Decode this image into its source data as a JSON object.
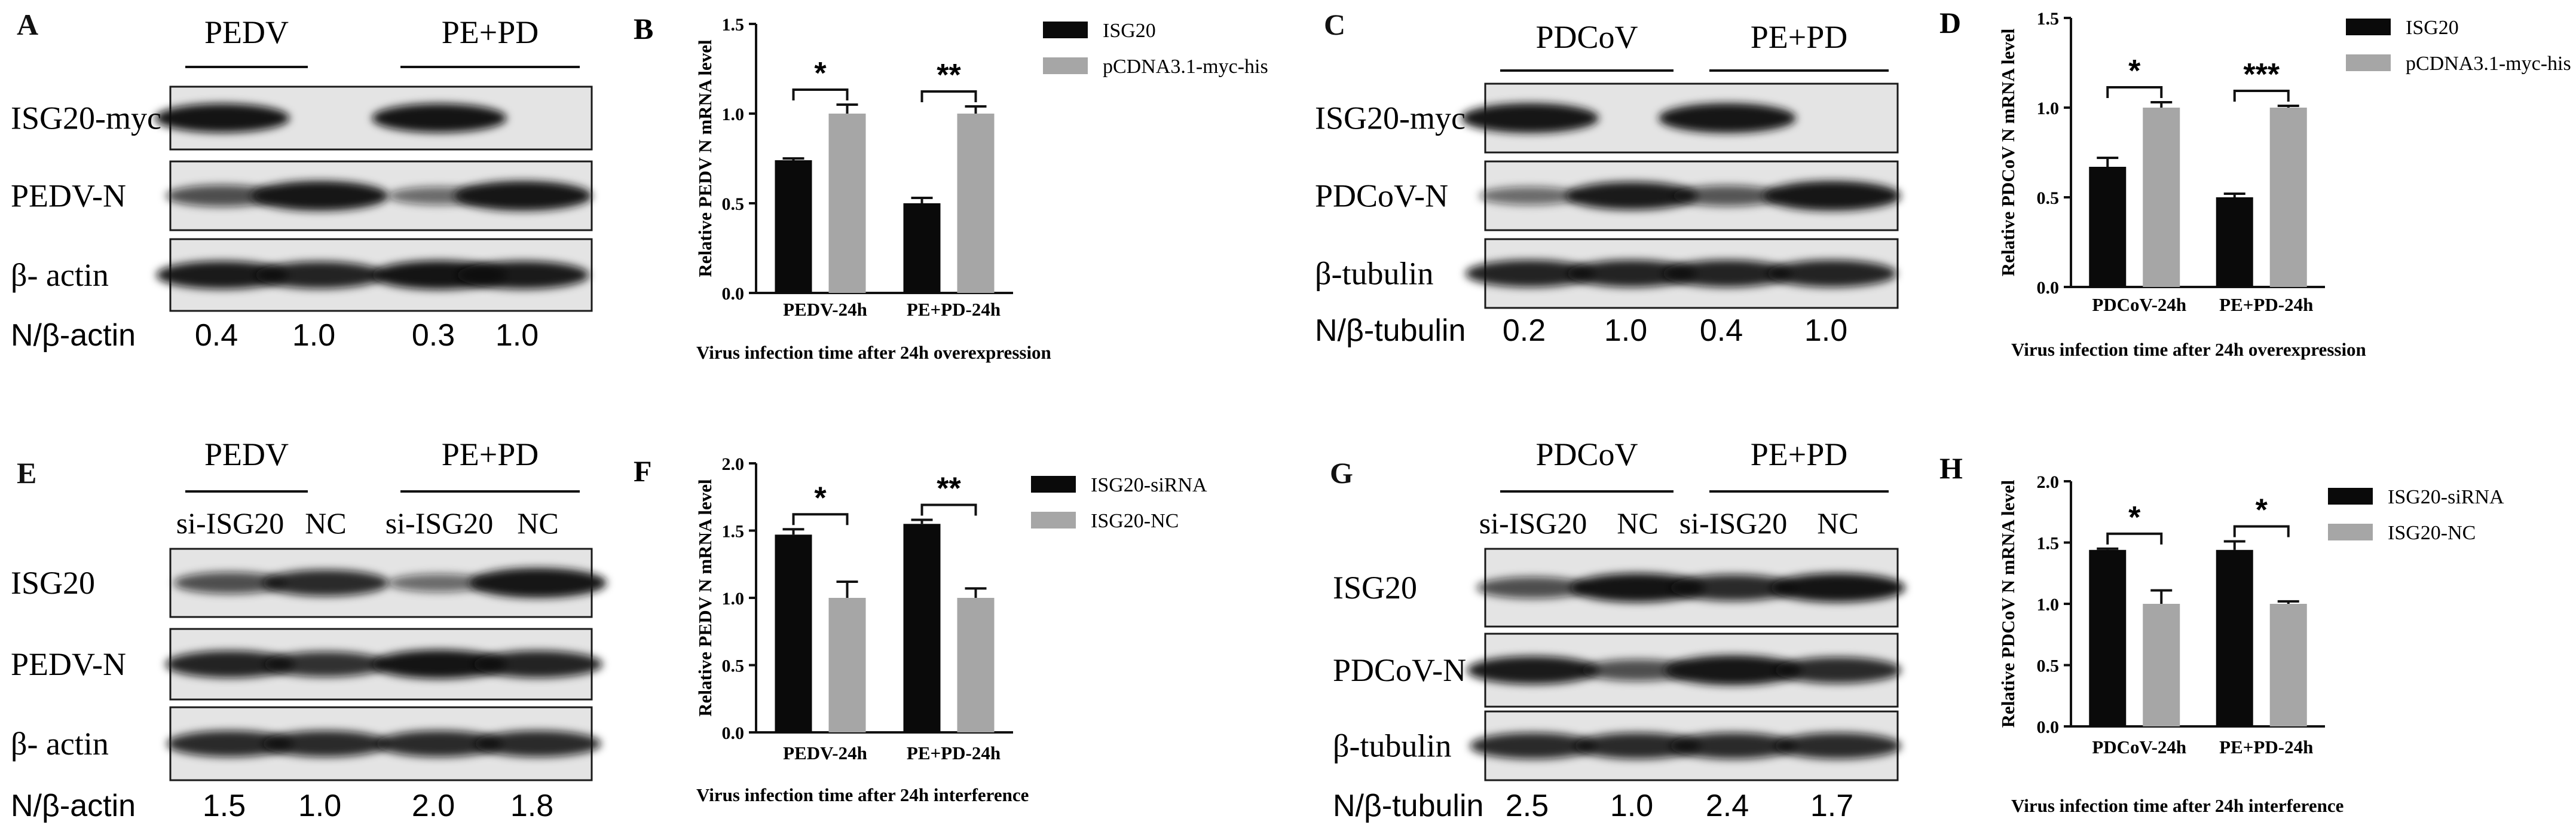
{
  "colors": {
    "black": "#0a0a0a",
    "gray": "#a6a6a6",
    "blot_background": "#e4e4e4",
    "band": "#121212"
  },
  "panels": {
    "A": {
      "letter": "A",
      "groups": [
        "PEDV",
        "PE+PD"
      ],
      "lanes": [],
      "rows": [
        {
          "label": "ISG20-myc",
          "bands": [
            0.95,
            0,
            0.95,
            0
          ]
        },
        {
          "label": "PEDV-N",
          "bands": [
            0.55,
            1.0,
            0.35,
            1.0
          ]
        },
        {
          "label": "β- actin",
          "bands": [
            0.9,
            0.85,
            0.95,
            0.9
          ]
        }
      ],
      "ratio_label": "N/β-actin",
      "ratios": [
        "0.4",
        "1.0",
        "0.3",
        "1.0"
      ]
    },
    "C": {
      "letter": "C",
      "groups": [
        "PDCoV",
        "PE+PD"
      ],
      "lanes": [],
      "rows": [
        {
          "label": "ISG20-myc",
          "bands": [
            1.0,
            0,
            1.0,
            0
          ]
        },
        {
          "label": "PDCoV-N",
          "bands": [
            0.35,
            0.9,
            0.5,
            1.0
          ]
        },
        {
          "label": "β-tubulin",
          "bands": [
            0.85,
            0.85,
            0.85,
            0.85
          ]
        }
      ],
      "ratio_label": "N/β-tubulin",
      "ratios": [
        "0.2",
        "1.0",
        "0.4",
        "1.0"
      ]
    },
    "E": {
      "letter": "E",
      "groups": [
        "PEDV",
        "PE+PD"
      ],
      "lanes": [
        "si-ISG20",
        "NC",
        "si-ISG20",
        "NC"
      ],
      "rows": [
        {
          "label": "ISG20",
          "bands": [
            0.55,
            0.8,
            0.35,
            1.0
          ]
        },
        {
          "label": "PEDV-N",
          "bands": [
            0.85,
            0.75,
            0.95,
            0.85
          ]
        },
        {
          "label": "β- actin",
          "bands": [
            0.8,
            0.8,
            0.8,
            0.8
          ]
        }
      ],
      "ratio_label": "N/β-actin",
      "ratios": [
        "1.5",
        "1.0",
        "2.0",
        "1.8"
      ]
    },
    "G": {
      "letter": "G",
      "groups": [
        "PDCoV",
        "PE+PD"
      ],
      "lanes": [
        "si-ISG20",
        "NC",
        "si-ISG20",
        "NC"
      ],
      "rows": [
        {
          "label": "ISG20",
          "bands": [
            0.55,
            0.95,
            0.8,
            0.95
          ]
        },
        {
          "label": "PDCoV-N",
          "bands": [
            0.9,
            0.55,
            1.0,
            0.8
          ]
        },
        {
          "label": "β-tubulin",
          "bands": [
            0.8,
            0.8,
            0.8,
            0.8
          ]
        }
      ],
      "ratio_label": "N/β-tubulin",
      "ratios": [
        "2.5",
        "1.0",
        "2.4",
        "1.7"
      ]
    }
  },
  "chart_data": [
    {
      "letter": "B",
      "type": "bar",
      "categories": [
        "PEDV-24h",
        "PE+PD-24h"
      ],
      "series": [
        {
          "name": "ISG20",
          "color": "black",
          "values": [
            0.74,
            0.5
          ],
          "errors": [
            0.01,
            0.03
          ]
        },
        {
          "name": "pCDNA3.1-myc-his",
          "color": "gray",
          "values": [
            1.0,
            1.0
          ],
          "errors": [
            0.05,
            0.04
          ]
        }
      ],
      "significance": [
        "*",
        "**"
      ],
      "ylabel": "Relative PEDV N mRNA level",
      "xlabel": "Virus infection time after 24h overexpression",
      "ylim": [
        0,
        1.5
      ],
      "yticks": [
        "0.0",
        "0.5",
        "1.0",
        "1.5"
      ]
    },
    {
      "letter": "D",
      "type": "bar",
      "categories": [
        "PDCoV-24h",
        "PE+PD-24h"
      ],
      "series": [
        {
          "name": "ISG20",
          "color": "black",
          "values": [
            0.67,
            0.5
          ],
          "errors": [
            0.05,
            0.02
          ]
        },
        {
          "name": "pCDNA3.1-myc-his",
          "color": "gray",
          "values": [
            1.0,
            1.0
          ],
          "errors": [
            0.03,
            0.01
          ]
        }
      ],
      "significance": [
        "*",
        "***"
      ],
      "ylabel": "Relative PDCoV N mRNA level",
      "xlabel": "Virus infection time after 24h overexpression",
      "ylim": [
        0,
        1.5
      ],
      "yticks": [
        "0.0",
        "0.5",
        "1.0",
        "1.5"
      ]
    },
    {
      "letter": "F",
      "type": "bar",
      "categories": [
        "PEDV-24h",
        "PE+PD-24h"
      ],
      "series": [
        {
          "name": "ISG20-siRNA",
          "color": "black",
          "values": [
            1.47,
            1.55
          ],
          "errors": [
            0.04,
            0.03
          ]
        },
        {
          "name": "ISG20-NC",
          "color": "gray",
          "values": [
            1.0,
            1.0
          ],
          "errors": [
            0.12,
            0.07
          ]
        }
      ],
      "significance": [
        "*",
        "**"
      ],
      "ylabel": "Relative PEDV N mRNA level",
      "xlabel": "Virus infection time after 24h interference",
      "ylim": [
        0,
        2.0
      ],
      "yticks": [
        "0.0",
        "0.5",
        "1.0",
        "1.5",
        "2.0"
      ]
    },
    {
      "letter": "H",
      "type": "bar",
      "categories": [
        "PDCoV-24h",
        "PE+PD-24h"
      ],
      "series": [
        {
          "name": "ISG20-siRNA",
          "color": "black",
          "values": [
            1.44,
            1.44
          ],
          "errors": [
            0.01,
            0.07
          ]
        },
        {
          "name": "ISG20-NC",
          "color": "gray",
          "values": [
            1.0,
            1.0
          ],
          "errors": [
            0.11,
            0.02
          ]
        }
      ],
      "significance": [
        "*",
        "*"
      ],
      "ylabel": "Relative PDCoV N mRNA level",
      "xlabel": "Virus infection time after 24h interference",
      "ylim": [
        0,
        2.0
      ],
      "yticks": [
        "0.0",
        "0.5",
        "1.0",
        "1.5",
        "2.0"
      ]
    }
  ]
}
